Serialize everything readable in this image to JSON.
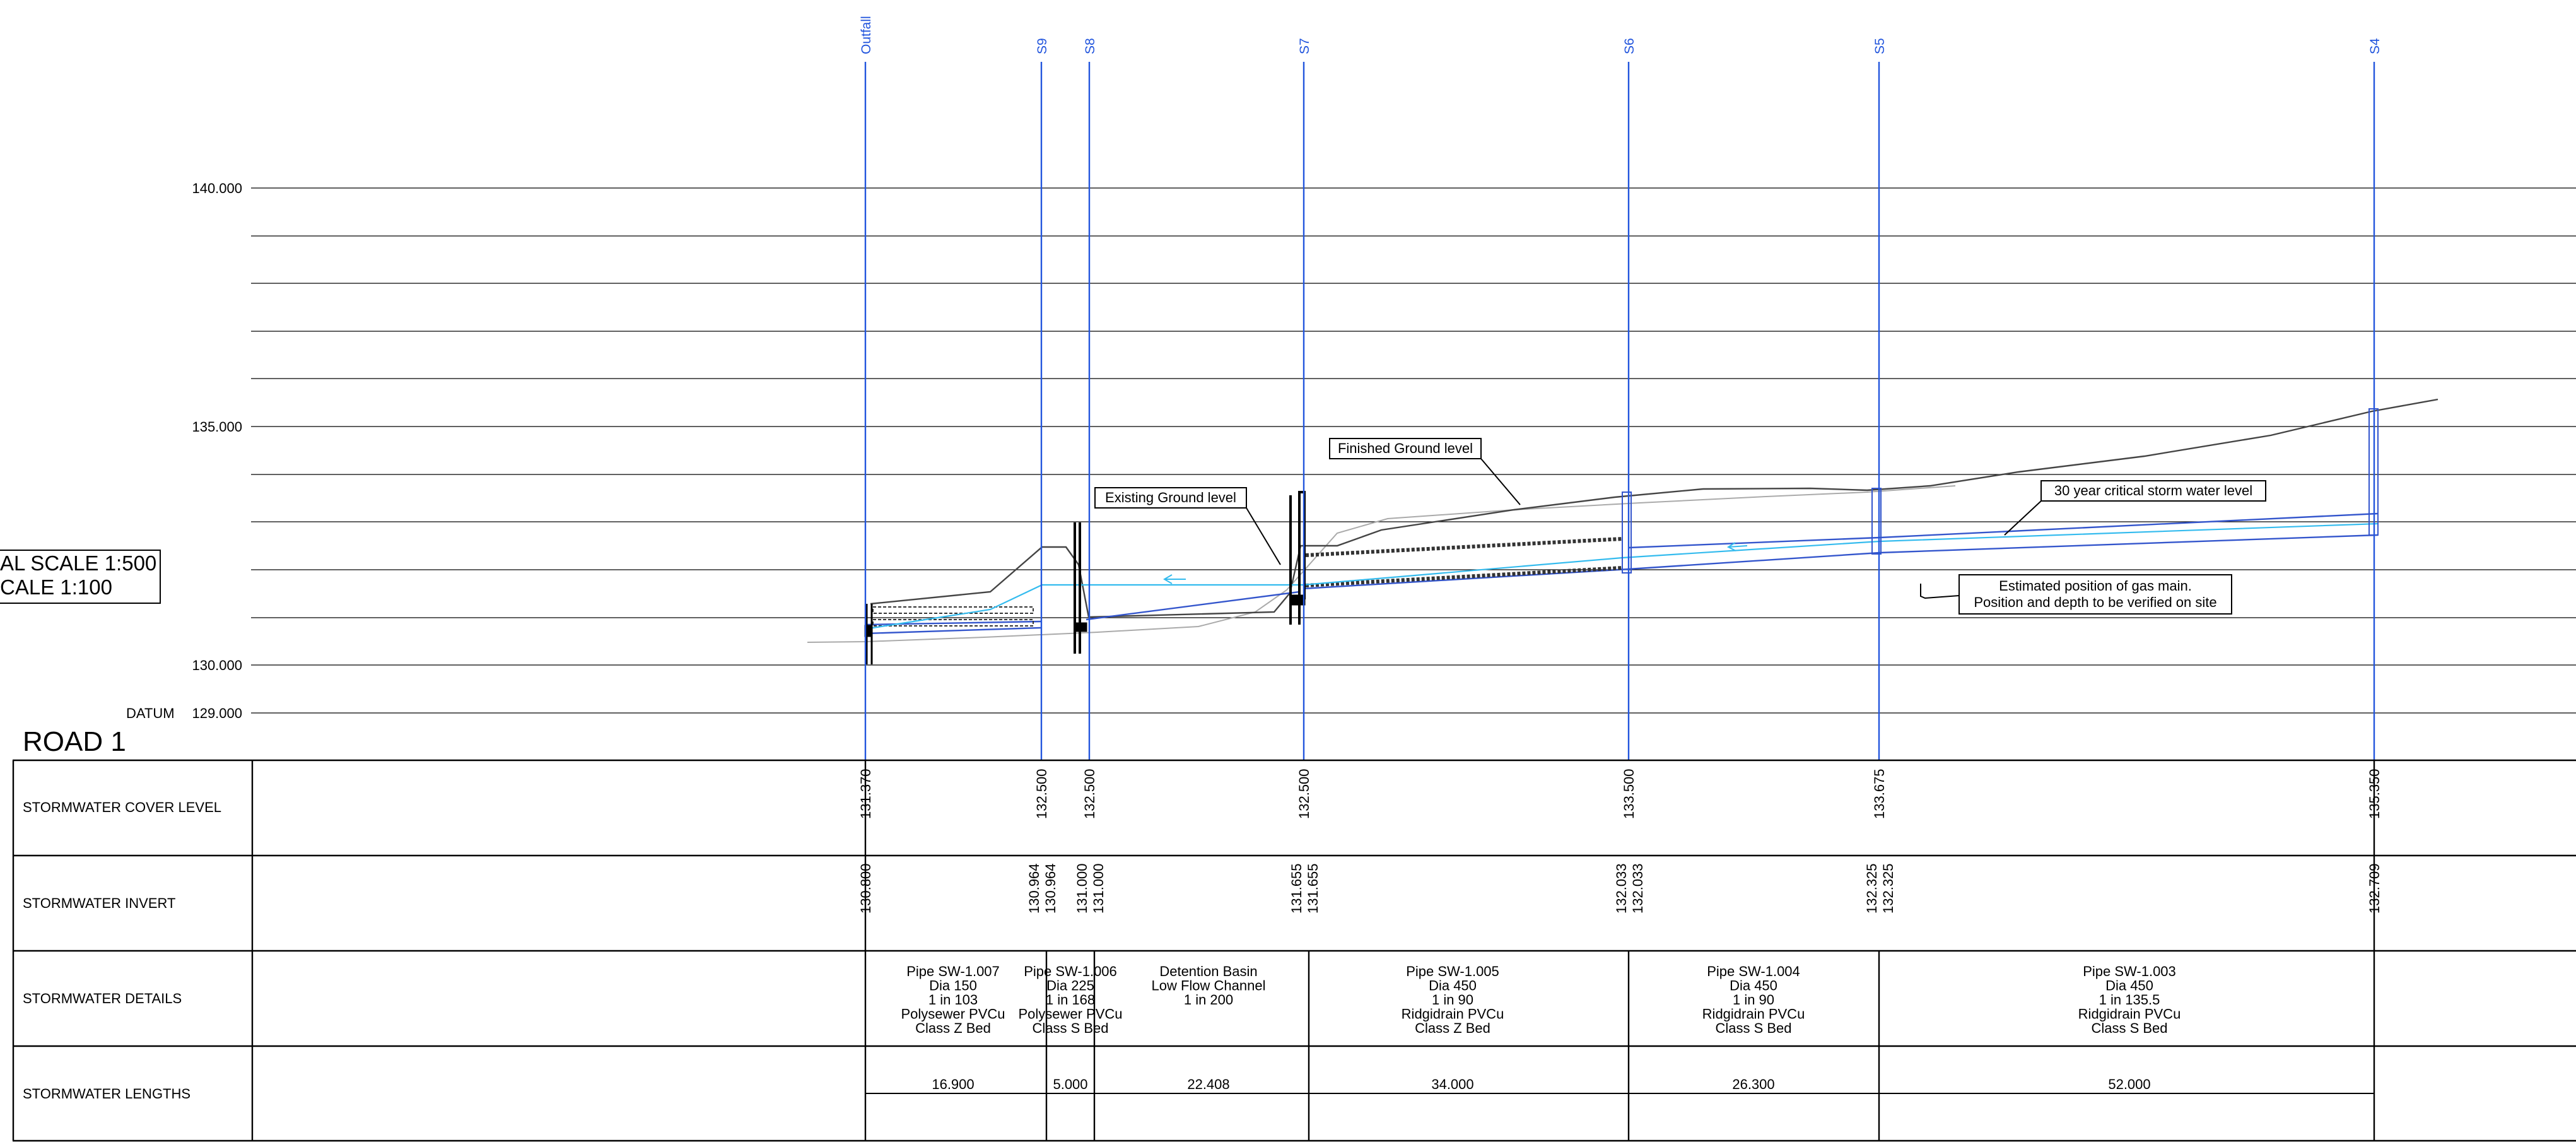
{
  "sheet": {
    "road_title": "ROAD 1",
    "scale_horizontal": "AL SCALE 1:500",
    "scale_vertical": "CALE 1:100",
    "datum_label": "DATUM",
    "datum_value": "129.000",
    "level_labels": [
      "140.000",
      "135.000",
      "130.000"
    ]
  },
  "structures": [
    {
      "id": "Outfall",
      "cover": "131.370",
      "inverts": [
        "130.800"
      ]
    },
    {
      "id": "S9",
      "cover": "132.500",
      "inverts": [
        "130.964",
        "130.964"
      ]
    },
    {
      "id": "S8",
      "cover": "132.500",
      "inverts": [
        "131.000",
        "131.000"
      ]
    },
    {
      "id": "S7",
      "cover": "132.500",
      "inverts": [
        "131.655",
        "131.655"
      ]
    },
    {
      "id": "S6",
      "cover": "133.500",
      "inverts": [
        "132.033",
        "132.033"
      ]
    },
    {
      "id": "S5",
      "cover": "133.675",
      "inverts": [
        "132.325",
        "132.325"
      ]
    },
    {
      "id": "S4",
      "cover": "135.350",
      "inverts": [
        "132.709"
      ]
    }
  ],
  "table": {
    "row_labels": [
      "STORMWATER COVER LEVEL",
      "STORMWATER INVERT",
      "STORMWATER DETAILS",
      "STORMWATER LENGTHS"
    ],
    "details": [
      [
        "Pipe SW-1.007",
        "Dia 150",
        "1 in 103",
        "Polysewer PVCu",
        "Class Z Bed"
      ],
      [
        "Pipe SW-1.006",
        "Dia 225",
        "1 in 168",
        "Polysewer PVCu",
        "Class S Bed"
      ],
      [
        "Detention Basin",
        "Low Flow Channel",
        "1 in 200"
      ],
      [
        "Pipe SW-1.005",
        "Dia 450",
        "1 in 90",
        "Ridgidrain PVCu",
        "Class Z Bed"
      ],
      [
        "Pipe SW-1.004",
        "Dia 450",
        "1 in 90",
        "Ridgidrain PVCu",
        "Class S Bed"
      ],
      [
        "Pipe SW-1.003",
        "Dia 450",
        "1 in 135.5",
        "Ridgidrain PVCu",
        "Class S Bed"
      ]
    ],
    "lengths": [
      "16.900",
      "5.000",
      "22.408",
      "34.000",
      "26.300",
      "52.000"
    ]
  },
  "annotations": {
    "finished_ground": "Finished Ground level",
    "existing_ground": "Existing Ground level",
    "storm_water": "30 year critical storm water level",
    "gas_main_line1": "Estimated position of gas main.",
    "gas_main_line2": "Position and depth to be verified on site"
  },
  "colors": {
    "station_line": "#2255dd",
    "station_text": "#2255dd",
    "water_level": "#33bbee",
    "pipe_line": "#3355cc",
    "ground_line": "#444444",
    "existing_ground": "#aaaaaa"
  }
}
